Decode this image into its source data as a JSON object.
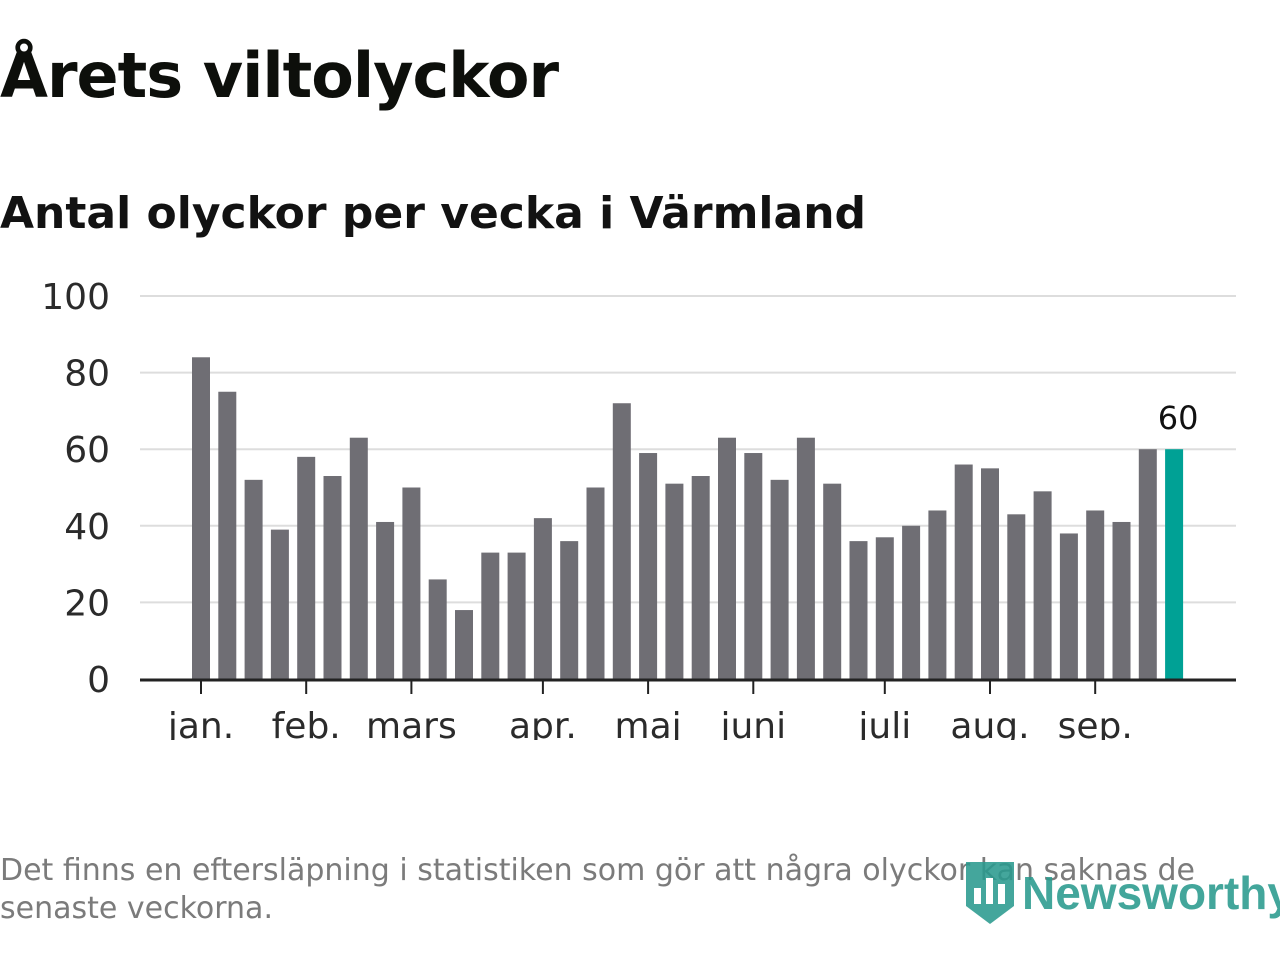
{
  "title": "Årets viltolyckor",
  "subtitle": "Antal olyckor per vecka i Värmland",
  "note": "Det finns en eftersläpning i statistiken som gör att några olyckor kan saknas de senaste veckorna.",
  "logo": {
    "text": "Newsworthy",
    "icon": "bar-chart-pin-icon"
  },
  "colors": {
    "bar": "#6f6e74",
    "highlight": "#00a195",
    "grid": "#dddddd",
    "axis": "#222222",
    "text": "#2b2b2b"
  },
  "chart_data": {
    "type": "bar",
    "values": [
      84,
      75,
      52,
      39,
      58,
      53,
      63,
      41,
      50,
      26,
      18,
      33,
      33,
      42,
      36,
      50,
      72,
      59,
      51,
      53,
      63,
      59,
      52,
      63,
      51,
      36,
      37,
      40,
      44,
      56,
      55,
      43,
      49,
      38,
      44,
      41,
      60,
      60
    ],
    "highlight_index": 37,
    "highlight_label": "60",
    "ylim": [
      0,
      100
    ],
    "yticks": [
      0,
      20,
      40,
      60,
      80,
      100
    ],
    "month_labels": [
      {
        "label": "jan.",
        "bar_index": 0
      },
      {
        "label": "feb.",
        "bar_index": 4
      },
      {
        "label": "mars",
        "bar_index": 8
      },
      {
        "label": "apr.",
        "bar_index": 13
      },
      {
        "label": "maj",
        "bar_index": 17
      },
      {
        "label": "juni",
        "bar_index": 21
      },
      {
        "label": "juli",
        "bar_index": 26
      },
      {
        "label": "aug.",
        "bar_index": 30
      },
      {
        "label": "sep.",
        "bar_index": 34
      }
    ],
    "grid": true
  }
}
